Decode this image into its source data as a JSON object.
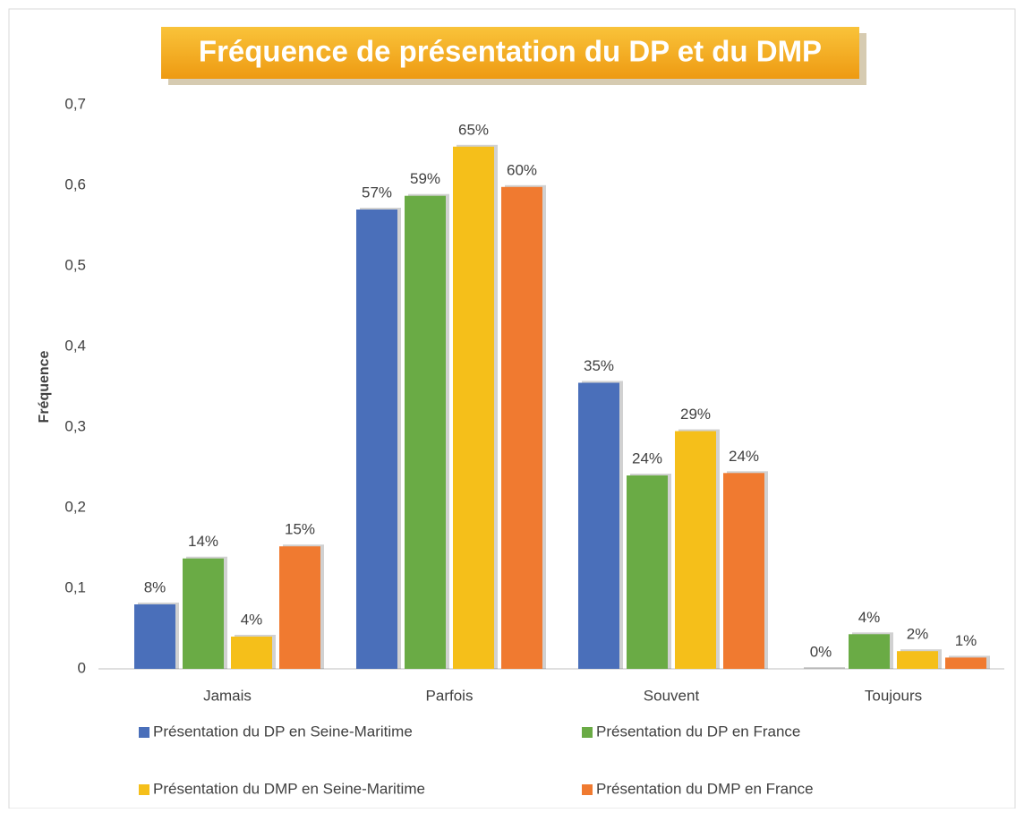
{
  "chart_data": {
    "type": "bar",
    "title": "Fréquence de présentation du DP et du DMP",
    "y_label": "Fréquence",
    "categories": [
      "Jamais",
      "Parfois",
      "Souvent",
      "Toujours"
    ],
    "series": [
      {
        "name": "Présentation du DP en Seine-Maritime",
        "color": "#4a6fba",
        "values": [
          0.08,
          0.57,
          0.355,
          0
        ],
        "value_labels": [
          "8%",
          "57%",
          "35%",
          "0%"
        ]
      },
      {
        "name": "Présentation du DP en France",
        "color": "#6aab45",
        "values": [
          0.137,
          0.587,
          0.24,
          0.043
        ],
        "value_labels": [
          "14%",
          "59%",
          "24%",
          "4%"
        ]
      },
      {
        "name": "Présentation du DMP en Seine-Maritime",
        "color": "#f5bf1a",
        "values": [
          0.04,
          0.648,
          0.295,
          0.022
        ],
        "value_labels": [
          "4%",
          "65%",
          "29%",
          "2%"
        ]
      },
      {
        "name": "Présentation du DMP en France",
        "color": "#f07a30",
        "values": [
          0.152,
          0.598,
          0.243,
          0.014
        ],
        "value_labels": [
          "15%",
          "60%",
          "24%",
          "1%"
        ]
      }
    ],
    "ylim": [
      0,
      0.7
    ],
    "yticks": [
      0,
      {
        "value": 0.1,
        "label": "0,1"
      },
      {
        "value": 0.2,
        "label": "0,2"
      },
      {
        "value": 0.3,
        "label": "0,3"
      },
      {
        "value": 0.4,
        "label": "0,4"
      },
      {
        "value": 0.5,
        "label": "0,5"
      },
      {
        "value": 0.6,
        "label": "0,6"
      },
      {
        "value": 0.7,
        "label": "0,7"
      }
    ],
    "grid": false,
    "legend": "bottom"
  }
}
